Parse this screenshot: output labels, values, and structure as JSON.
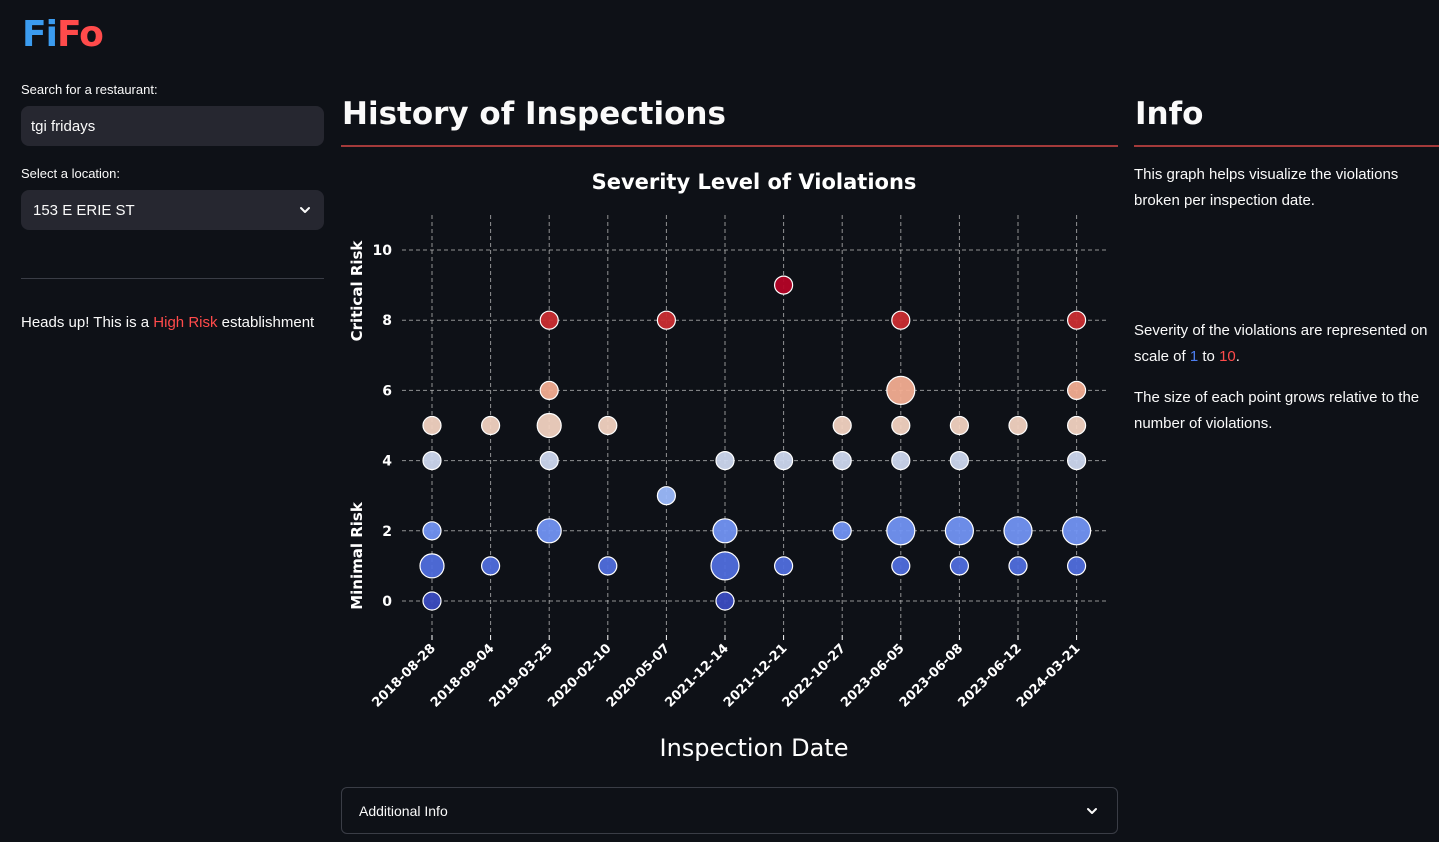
{
  "app": {
    "logo_part1": "Fi",
    "logo_part2": "Fo"
  },
  "sidebar": {
    "search_label": "Search for a restaurant:",
    "search_value": "tgi fridays",
    "location_label": "Select a location:",
    "location_value": "153 E ERIE ST",
    "risk_prefix": "Heads up! This is a ",
    "risk_level": "High Risk",
    "risk_suffix": " establishment"
  },
  "main": {
    "title": "History of Inspections",
    "expander_label": "Additional Info"
  },
  "info": {
    "title": "Info",
    "paragraph1": "This graph helps visualize the violations broken per inspection date.",
    "p2_prefix": "Severity of the violations are represented on scale of ",
    "p2_low": "1",
    "p2_mid": " to ",
    "p2_high": "10",
    "p2_suffix": ".",
    "paragraph3": "The size of each point grows relative to the number of violations."
  },
  "colors": {
    "accent_red": "#ff4b4b",
    "accent_blue": "#3b9cf0",
    "background": "#0e1117",
    "widget_bg": "#262730"
  },
  "icons": {
    "select": "chevron-down-icon",
    "expander": "chevron-down-icon"
  },
  "chart_data": {
    "type": "scatter",
    "title": "Severity Level of Violations",
    "xlabel": "Inspection Date",
    "ylabel_top": "Critical Risk",
    "ylabel_bottom": "Minimal Risk",
    "categories": [
      "2018-08-28",
      "2018-09-04",
      "2019-03-25",
      "2020-02-10",
      "2020-05-07",
      "2021-12-14",
      "2021-12-21",
      "2022-10-27",
      "2023-06-05",
      "2023-06-08",
      "2023-06-12",
      "2024-03-21"
    ],
    "yticks": [
      0,
      2,
      4,
      6,
      8,
      10
    ],
    "ylim": [
      -0.8,
      11
    ],
    "grid": true,
    "points": [
      {
        "x": "2018-08-28",
        "y": 0,
        "count": 1
      },
      {
        "x": "2018-08-28",
        "y": 1,
        "count": 2
      },
      {
        "x": "2018-08-28",
        "y": 2,
        "count": 1
      },
      {
        "x": "2018-08-28",
        "y": 4,
        "count": 1
      },
      {
        "x": "2018-08-28",
        "y": 5,
        "count": 1
      },
      {
        "x": "2018-09-04",
        "y": 1,
        "count": 1
      },
      {
        "x": "2018-09-04",
        "y": 5,
        "count": 1
      },
      {
        "x": "2019-03-25",
        "y": 2,
        "count": 2
      },
      {
        "x": "2019-03-25",
        "y": 4,
        "count": 1
      },
      {
        "x": "2019-03-25",
        "y": 5,
        "count": 2
      },
      {
        "x": "2019-03-25",
        "y": 6,
        "count": 1
      },
      {
        "x": "2019-03-25",
        "y": 8,
        "count": 1
      },
      {
        "x": "2020-02-10",
        "y": 1,
        "count": 1
      },
      {
        "x": "2020-02-10",
        "y": 5,
        "count": 1
      },
      {
        "x": "2020-05-07",
        "y": 3,
        "count": 1
      },
      {
        "x": "2020-05-07",
        "y": 8,
        "count": 1
      },
      {
        "x": "2021-12-14",
        "y": 0,
        "count": 1
      },
      {
        "x": "2021-12-14",
        "y": 1,
        "count": 3
      },
      {
        "x": "2021-12-14",
        "y": 2,
        "count": 2
      },
      {
        "x": "2021-12-14",
        "y": 4,
        "count": 1
      },
      {
        "x": "2021-12-21",
        "y": 1,
        "count": 1
      },
      {
        "x": "2021-12-21",
        "y": 4,
        "count": 1
      },
      {
        "x": "2021-12-21",
        "y": 9,
        "count": 1
      },
      {
        "x": "2022-10-27",
        "y": 2,
        "count": 1
      },
      {
        "x": "2022-10-27",
        "y": 4,
        "count": 1
      },
      {
        "x": "2022-10-27",
        "y": 5,
        "count": 1
      },
      {
        "x": "2023-06-05",
        "y": 1,
        "count": 1
      },
      {
        "x": "2023-06-05",
        "y": 2,
        "count": 3
      },
      {
        "x": "2023-06-05",
        "y": 4,
        "count": 1
      },
      {
        "x": "2023-06-05",
        "y": 5,
        "count": 1
      },
      {
        "x": "2023-06-05",
        "y": 6,
        "count": 3
      },
      {
        "x": "2023-06-05",
        "y": 8,
        "count": 1
      },
      {
        "x": "2023-06-08",
        "y": 1,
        "count": 1
      },
      {
        "x": "2023-06-08",
        "y": 2,
        "count": 3
      },
      {
        "x": "2023-06-08",
        "y": 4,
        "count": 1
      },
      {
        "x": "2023-06-08",
        "y": 5,
        "count": 1
      },
      {
        "x": "2023-06-12",
        "y": 1,
        "count": 1
      },
      {
        "x": "2023-06-12",
        "y": 2,
        "count": 3
      },
      {
        "x": "2023-06-12",
        "y": 5,
        "count": 1
      },
      {
        "x": "2024-03-21",
        "y": 1,
        "count": 1
      },
      {
        "x": "2024-03-21",
        "y": 2,
        "count": 3
      },
      {
        "x": "2024-03-21",
        "y": 4,
        "count": 1
      },
      {
        "x": "2024-03-21",
        "y": 5,
        "count": 1
      },
      {
        "x": "2024-03-21",
        "y": 6,
        "count": 1
      },
      {
        "x": "2024-03-21",
        "y": 8,
        "count": 1
      }
    ],
    "colormap": "coolwarm"
  }
}
